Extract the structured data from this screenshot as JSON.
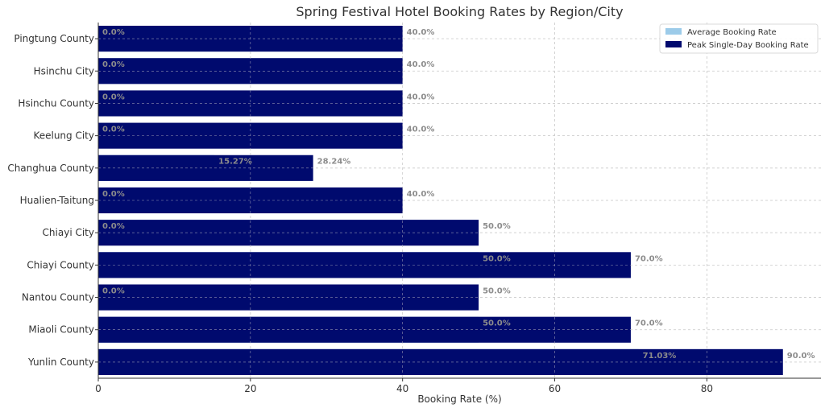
{
  "chart_data": {
    "type": "bar",
    "orientation": "horizontal",
    "title": "Spring Festival Hotel Booking Rates by Region/City",
    "xlabel": "Booking Rate (%)",
    "ylabel": "",
    "xlim": [
      0,
      95
    ],
    "xticks": [
      0,
      20,
      40,
      60,
      80
    ],
    "grid": true,
    "legend_position": "top-right",
    "categories": [
      "Yunlin County",
      "Miaoli County",
      "Nantou County",
      "Chiayi County",
      "Chiayi City",
      "Hualien-Taitung",
      "Changhua County",
      "Keelung City",
      "Hsinchu County",
      "Hsinchu City",
      "Pingtung County"
    ],
    "series": [
      {
        "name": "Average Booking Rate",
        "color": "#9ccbe9",
        "values": [
          71.03,
          50.0,
          0.0,
          50.0,
          0.0,
          0.0,
          15.27,
          0.0,
          0.0,
          0.0,
          0.0
        ],
        "labels": [
          "71.03%",
          "50.0%",
          "0.0%",
          "50.0%",
          "0.0%",
          "0.0%",
          "15.27%",
          "0.0%",
          "0.0%",
          "0.0%",
          "0.0%"
        ]
      },
      {
        "name": "Peak Single-Day Booking Rate",
        "color": "#000a6e",
        "values": [
          90.0,
          70.0,
          50.0,
          70.0,
          50.0,
          40.0,
          28.24,
          40.0,
          40.0,
          40.0,
          40.0
        ],
        "labels": [
          "90.0%",
          "70.0%",
          "50.0%",
          "70.0%",
          "50.0%",
          "40.0%",
          "28.24%",
          "40.0%",
          "40.0%",
          "40.0%",
          "40.0%"
        ]
      }
    ]
  }
}
